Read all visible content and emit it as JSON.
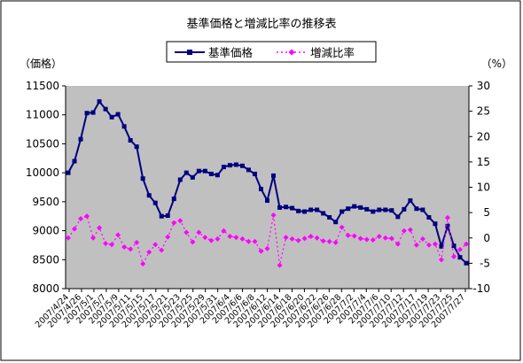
{
  "chart_data": {
    "type": "line",
    "title": "基準価格と増減比率の推移表",
    "left_unit_label": "（価格）",
    "right_unit_label": "（%）",
    "y_left": {
      "min": 8000,
      "max": 11500,
      "step": 500,
      "ticks": [
        "8000",
        "8500",
        "9000",
        "9500",
        "10000",
        "10500",
        "11000",
        "11500"
      ]
    },
    "y_right": {
      "min": -10,
      "max": 30,
      "step": 5,
      "ticks": [
        "-10",
        "-5",
        "0",
        "5",
        "10",
        "15",
        "20",
        "25",
        "30"
      ]
    },
    "x_tick_labels": [
      "2007/4/24",
      "2007/4/26",
      "2007/5/1",
      "2007/5/7",
      "2007/5/9",
      "2007/5/11",
      "2007/5/15",
      "2007/5/17",
      "2007/5/21",
      "2007/5/23",
      "2007/5/25",
      "2007/5/29",
      "2007/5/31",
      "2007/6/4",
      "2007/6/6",
      "2007/6/8",
      "2007/6/12",
      "2007/6/14",
      "2007/6/18",
      "2007/6/20",
      "2007/6/22",
      "2007/6/26",
      "2007/6/28",
      "2007/7/2",
      "2007/7/4",
      "2007/7/6",
      "2007/7/10",
      "2007/7/12",
      "2007/7/17",
      "2007/7/19",
      "2007/7/23",
      "2007/7/25",
      "2007/7/27"
    ],
    "series": [
      {
        "name": "基準価格",
        "axis": "left",
        "color": "#000080",
        "marker": "square",
        "values": [
          10000,
          10200,
          10580,
          11030,
          11040,
          11230,
          11100,
          10960,
          11010,
          10800,
          10560,
          10450,
          9900,
          9610,
          9480,
          9250,
          9260,
          9550,
          9880,
          10000,
          9920,
          10030,
          10030,
          9980,
          9960,
          10100,
          10130,
          10140,
          10120,
          10050,
          9980,
          9720,
          9520,
          9950,
          9400,
          9410,
          9390,
          9340,
          9330,
          9360,
          9360,
          9300,
          9230,
          9150,
          9330,
          9380,
          9420,
          9400,
          9370,
          9330,
          9360,
          9360,
          9350,
          9240,
          9370,
          9520,
          9380,
          9360,
          9230,
          9120,
          8730,
          9080,
          8740,
          8540,
          8440
        ]
      },
      {
        "name": "増減比率",
        "axis": "right",
        "color": "#ff00ff",
        "marker": "diamond",
        "values": [
          0,
          1.8,
          3.8,
          4.3,
          0,
          2,
          -1.1,
          -1.3,
          0.6,
          -1.8,
          -2.2,
          -0.9,
          -5.1,
          -2.8,
          -1.3,
          -2.4,
          0.2,
          3,
          3.4,
          1.1,
          -0.8,
          1.1,
          0.1,
          -0.5,
          -0.2,
          1.4,
          0.3,
          0.1,
          -0.2,
          -0.7,
          -0.7,
          -2.6,
          -2.1,
          4.5,
          -5.4,
          0.1,
          -0.2,
          -0.5,
          -0.1,
          0.3,
          0,
          -0.6,
          -0.7,
          -0.9,
          2.1,
          0.5,
          0.4,
          -0.1,
          -0.3,
          -0.4,
          0.3,
          0,
          -0.1,
          -1.2,
          1.4,
          1.6,
          -1.4,
          -0.2,
          -1.4,
          -1.2,
          -4.3,
          4,
          -3.7,
          -2.3,
          -1.2
        ]
      }
    ],
    "legend_position": "top-center",
    "plot_background": "#c0c0c0",
    "grid": false
  }
}
